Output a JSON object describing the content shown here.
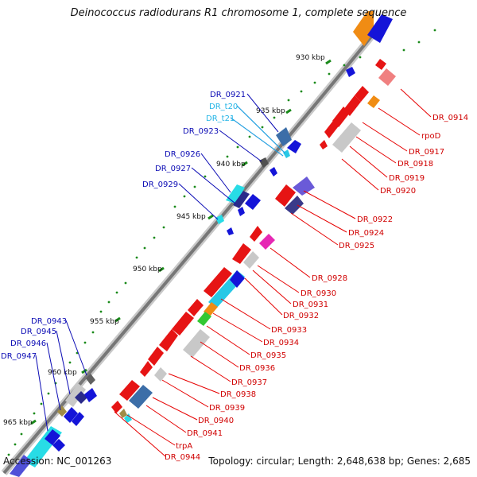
{
  "title": "Deinococcus radiodurans R1 chromosome 1, complete sequence",
  "footer": {
    "accession": "Accession: NC_001263",
    "summary": "Topology: circular; Length: 2,648,638 bp; Genes: 2,685"
  },
  "colors": {
    "forward_label": "#0a0ab4",
    "trna_label": "#22b4e6",
    "reverse_label": "#d00000",
    "backbone": "#8a8a8a",
    "tick": "#1a8a1a"
  },
  "scale": {
    "unit": "kbp",
    "ticks": [
      "930 kbp",
      "935 kbp",
      "940 kbp",
      "945 kbp",
      "950 kbp",
      "955 kbp",
      "960 kbp",
      "965 kbp"
    ]
  },
  "labels_forward": [
    "DR_0921",
    "DR_t20",
    "DR_t21",
    "DR_0923",
    "DR_0926",
    "DR_0927",
    "DR_0929",
    "DR_0943",
    "DR_0945",
    "DR_0946",
    "DR_0947"
  ],
  "labels_reverse": [
    "DR_0914",
    "rpoD",
    "DR_0917",
    "DR_0918",
    "DR_0919",
    "DR_0920",
    "DR_0922",
    "DR_0924",
    "DR_0925",
    "DR_0928",
    "DR_0930",
    "DR_0931",
    "DR_0932",
    "DR_0933",
    "DR_0934",
    "DR_0935",
    "DR_0936",
    "DR_0937",
    "DR_0938",
    "DR_0939",
    "DR_0940",
    "DR_0941",
    "trpA",
    "DR_0944"
  ]
}
